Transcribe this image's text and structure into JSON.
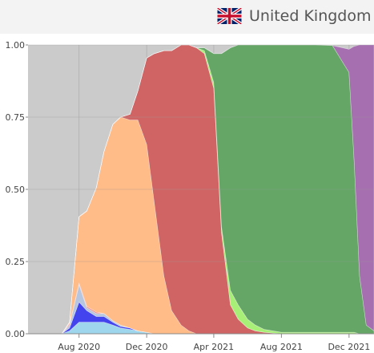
{
  "header": {
    "country": "United Kingdom",
    "flag_icon": "uk-flag-icon"
  },
  "colors": {
    "background": "#cbcbcb",
    "grid": "#b0b0b0",
    "axis_text": "#444444"
  },
  "chart_data": {
    "type": "area",
    "stacked": true,
    "normalized": true,
    "title": "",
    "xlabel": "",
    "ylabel": "",
    "ylim": [
      0,
      1
    ],
    "xlim": [
      "2020-05-01",
      "2022-01-15"
    ],
    "x": [
      "2020-05-01",
      "2020-07-01",
      "2020-07-15",
      "2020-08-01",
      "2020-08-15",
      "2020-09-01",
      "2020-09-15",
      "2020-10-01",
      "2020-10-15",
      "2020-11-01",
      "2020-11-15",
      "2020-12-01",
      "2020-12-15",
      "2021-01-01",
      "2021-01-15",
      "2021-02-01",
      "2021-02-15",
      "2021-03-01",
      "2021-03-15",
      "2021-04-01",
      "2021-04-15",
      "2021-05-01",
      "2021-05-15",
      "2021-06-01",
      "2021-06-15",
      "2021-07-01",
      "2021-08-01",
      "2021-09-01",
      "2021-10-01",
      "2021-11-01",
      "2021-12-01",
      "2021-12-10",
      "2021-12-20",
      "2022-01-01",
      "2022-01-15"
    ],
    "x_ticks": [
      "Aug 2020",
      "Dec 2020",
      "Apr 2021",
      "Aug 2021",
      "Dec 2021"
    ],
    "x_tick_values": [
      "2020-08-01",
      "2020-12-01",
      "2021-04-01",
      "2021-08-01",
      "2021-12-01"
    ],
    "y_ticks": [
      "0.00",
      "0.25",
      "0.50",
      "0.75",
      "1.00"
    ],
    "y_tick_values": [
      0,
      0.25,
      0.5,
      0.75,
      1
    ],
    "grid": true,
    "series": [
      {
        "color": "#9ed6ee",
        "values": [
          0,
          0,
          0.01,
          0.04,
          0.04,
          0.04,
          0.04,
          0.03,
          0.02,
          0.015,
          0.01,
          0.005,
          0,
          0,
          0,
          0,
          0,
          0,
          0,
          0,
          0,
          0,
          0,
          0,
          0,
          0,
          0,
          0,
          0,
          0,
          0,
          0,
          0,
          0,
          0
        ]
      },
      {
        "color": "#4444ee",
        "values": [
          0,
          0,
          0.01,
          0.07,
          0.04,
          0.02,
          0.02,
          0.01,
          0.005,
          0.005,
          0,
          0,
          0,
          0,
          0,
          0,
          0,
          0,
          0,
          0,
          0,
          0,
          0,
          0,
          0,
          0,
          0,
          0,
          0,
          0,
          0,
          0,
          0,
          0,
          0
        ]
      },
      {
        "color": "#b6c6e0",
        "values": [
          0,
          0,
          0.01,
          0.06,
          0.01,
          0.01,
          0.01,
          0.005,
          0.005,
          0,
          0,
          0,
          0,
          0,
          0,
          0,
          0,
          0,
          0,
          0,
          0,
          0,
          0,
          0,
          0,
          0,
          0,
          0,
          0,
          0,
          0,
          0,
          0,
          0,
          0
        ]
      },
      {
        "color": "#f08a8a",
        "values": [
          0,
          0,
          0.005,
          0.005,
          0.005,
          0.005,
          0,
          0,
          0,
          0,
          0,
          0,
          0,
          0,
          0,
          0,
          0,
          0,
          0,
          0,
          0,
          0,
          0,
          0,
          0,
          0,
          0,
          0,
          0,
          0,
          0,
          0,
          0,
          0,
          0
        ]
      },
      {
        "color": "#ffbb88",
        "values": [
          0,
          0,
          0.005,
          0.23,
          0.33,
          0.43,
          0.56,
          0.68,
          0.72,
          0.72,
          0.73,
          0.65,
          0.45,
          0.2,
          0.08,
          0.03,
          0.01,
          0,
          0,
          0,
          0,
          0,
          0,
          0,
          0,
          0,
          0,
          0,
          0,
          0,
          0,
          0,
          0,
          0,
          0
        ]
      },
      {
        "color": "#d06464",
        "values": [
          0,
          0,
          0,
          0,
          0,
          0,
          0,
          0,
          0,
          0.02,
          0.1,
          0.3,
          0.52,
          0.78,
          0.9,
          0.97,
          0.99,
          0.99,
          0.97,
          0.85,
          0.35,
          0.1,
          0.05,
          0.02,
          0.01,
          0.005,
          0,
          0,
          0,
          0,
          0,
          0,
          0,
          0,
          0
        ]
      },
      {
        "color": "#a8ef78",
        "values": [
          0,
          0,
          0,
          0,
          0,
          0,
          0,
          0,
          0,
          0,
          0,
          0,
          0,
          0,
          0,
          0,
          0,
          0,
          0.01,
          0.02,
          0.02,
          0.05,
          0.05,
          0.03,
          0.02,
          0.01,
          0.005,
          0.005,
          0.005,
          0.005,
          0.005,
          0.005,
          0,
          0,
          0
        ]
      },
      {
        "color": "#65a667",
        "values": [
          0,
          0,
          0,
          0,
          0,
          0,
          0,
          0,
          0,
          0,
          0,
          0,
          0,
          0,
          0,
          0,
          0,
          0,
          0.01,
          0.1,
          0.6,
          0.84,
          0.94,
          0.95,
          0.97,
          0.985,
          0.995,
          0.995,
          0.995,
          0.993,
          0.9,
          0.6,
          0.2,
          0.03,
          0.01
        ]
      },
      {
        "color": "#a56fb0",
        "values": [
          0,
          0,
          0,
          0,
          0,
          0,
          0,
          0,
          0,
          0,
          0,
          0,
          0,
          0,
          0,
          0,
          0,
          0,
          0,
          0,
          0,
          0,
          0,
          0,
          0,
          0,
          0,
          0,
          0,
          0,
          0.08,
          0.39,
          0.8,
          0.97,
          0.99
        ]
      }
    ]
  }
}
